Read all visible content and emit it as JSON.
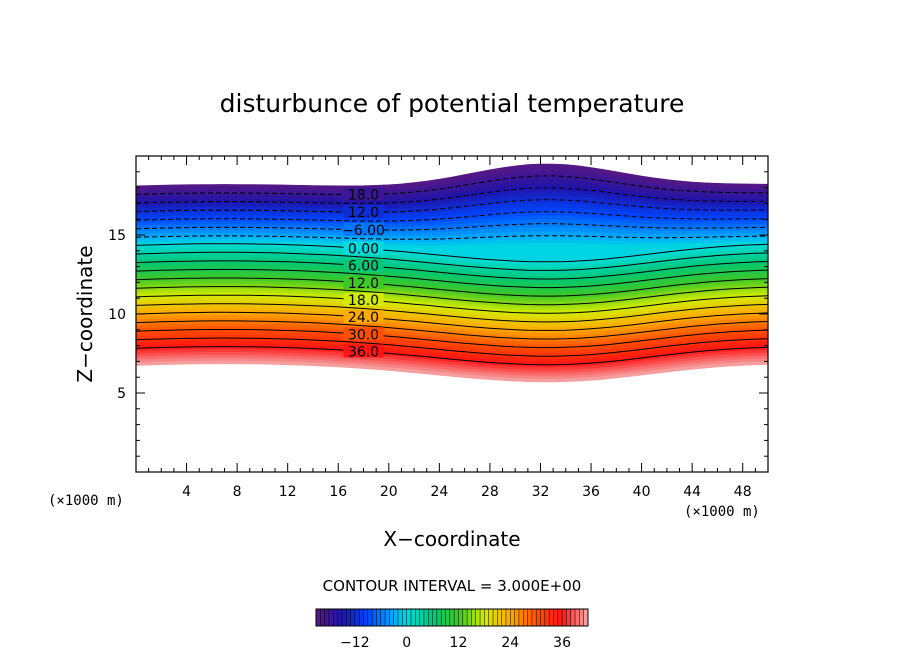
{
  "chart_data": {
    "type": "contour",
    "title": "disturbunce of potential temperature",
    "xlabel": "X−coordinate",
    "ylabel": "Z−coordinate",
    "x_unit": "(×1000 m)",
    "x_unit_right": "(×1000 m)",
    "xlim": [
      0,
      50
    ],
    "ylim": [
      0,
      20
    ],
    "x_ticks": [
      4,
      8,
      12,
      16,
      20,
      24,
      28,
      32,
      36,
      40,
      44,
      48
    ],
    "y_ticks": [
      5,
      10,
      15
    ],
    "contour_interval_text": "CONTOUR INTERVAL = 3.000E+00",
    "contour_interval": 3.0,
    "contour_labels": [
      "18.0",
      "12.0",
      "−6.00",
      "0.00",
      "6.00",
      "12.0",
      "18.0",
      "24.0",
      "30.0",
      "36.0"
    ],
    "value_range": [
      -21,
      42
    ],
    "colorbar": {
      "ticks": [
        -12,
        0,
        12,
        24,
        36
      ],
      "tick_labels": [
        "−12",
        "0",
        "12",
        "24",
        "36"
      ]
    }
  },
  "colors": {
    "low": "#5a1a8a",
    "mid": "#00c878",
    "high": "#ff1010",
    "top": "#f0a0a0"
  }
}
